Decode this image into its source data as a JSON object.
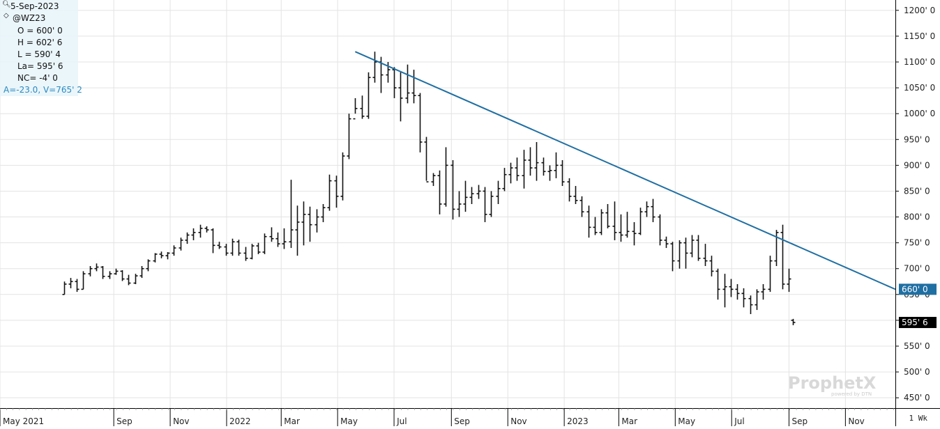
{
  "header": {
    "date": "5-Sep-2023",
    "symbol": "@WZ23",
    "open": "O = 600' 0",
    "high": "H = 602' 6",
    "low": "L = 590' 4",
    "last": "La= 595' 6",
    "net_change": "NC= -4' 0",
    "stats": "A=-23.0, V=765' 2"
  },
  "period": "1 Wk",
  "watermark": {
    "brand": "ProphetX",
    "sub": "powered by DTN"
  },
  "colors": {
    "bar": "#111111",
    "trendline": "#1f6fa3",
    "grid": "#e3e3e3",
    "last_tag_bg": "#000000",
    "trend_tag_bg": "#1f6fa3"
  },
  "chart_data": {
    "type": "ohlc",
    "frequency": "weekly",
    "ylim": [
      430,
      1220
    ],
    "y_ticks": [
      "1200' 0",
      "1150' 0",
      "1100' 0",
      "1050' 0",
      "1000' 0",
      "950' 0",
      "900' 0",
      "850' 0",
      "800' 0",
      "750' 0",
      "700' 0",
      "650' 0",
      "600' 0",
      "550' 0",
      "500' 0",
      "450' 0"
    ],
    "y_tick_values": [
      1200,
      1150,
      1100,
      1050,
      1000,
      950,
      900,
      850,
      800,
      750,
      700,
      650,
      600,
      550,
      500,
      450
    ],
    "x_ticks": [
      "May 2021",
      "Sep",
      "Nov",
      "2022",
      "Mar",
      "May",
      "Jul",
      "Sep",
      "Nov",
      "2023",
      "Mar",
      "May",
      "Jul",
      "Sep",
      "Nov"
    ],
    "x_tick_dates": [
      "2021-05-01",
      "2021-09-01",
      "2021-11-01",
      "2022-01-01",
      "2022-03-01",
      "2022-05-01",
      "2022-07-01",
      "2022-09-01",
      "2022-11-01",
      "2023-01-01",
      "2023-03-01",
      "2023-05-01",
      "2023-07-01",
      "2023-09-01",
      "2023-11-01"
    ],
    "x_range": [
      "2021-05-01",
      "2023-12-25"
    ],
    "bars": [
      [
        "2021-07-09",
        650,
        675,
        650,
        670
      ],
      [
        "2021-07-16",
        670,
        682,
        662,
        675
      ],
      [
        "2021-07-23",
        675,
        680,
        655,
        660
      ],
      [
        "2021-07-30",
        660,
        695,
        660,
        690
      ],
      [
        "2021-08-06",
        690,
        705,
        685,
        700
      ],
      [
        "2021-08-13",
        700,
        710,
        695,
        703
      ],
      [
        "2021-08-20",
        703,
        705,
        680,
        685
      ],
      [
        "2021-08-27",
        685,
        695,
        680,
        690
      ],
      [
        "2021-09-03",
        690,
        700,
        688,
        695
      ],
      [
        "2021-09-10",
        695,
        697,
        676,
        680
      ],
      [
        "2021-09-17",
        680,
        688,
        668,
        672
      ],
      [
        "2021-09-24",
        672,
        690,
        670,
        686
      ],
      [
        "2021-10-01",
        686,
        705,
        682,
        700
      ],
      [
        "2021-10-08",
        700,
        718,
        695,
        715
      ],
      [
        "2021-10-15",
        715,
        730,
        712,
        728
      ],
      [
        "2021-10-22",
        728,
        733,
        720,
        725
      ],
      [
        "2021-10-29",
        725,
        732,
        718,
        730
      ],
      [
        "2021-11-05",
        730,
        745,
        725,
        740
      ],
      [
        "2021-11-12",
        740,
        760,
        735,
        755
      ],
      [
        "2021-11-19",
        755,
        770,
        748,
        765
      ],
      [
        "2021-11-26",
        765,
        778,
        755,
        770
      ],
      [
        "2021-12-03",
        770,
        785,
        760,
        778
      ],
      [
        "2021-12-10",
        778,
        782,
        770,
        775
      ],
      [
        "2021-12-17",
        775,
        778,
        730,
        745
      ],
      [
        "2021-12-24",
        745,
        752,
        738,
        742
      ],
      [
        "2021-12-31",
        742,
        748,
        725,
        730
      ],
      [
        "2022-01-07",
        730,
        758,
        725,
        752
      ],
      [
        "2022-01-14",
        752,
        756,
        725,
        730
      ],
      [
        "2022-01-21",
        730,
        742,
        715,
        720
      ],
      [
        "2022-01-28",
        720,
        748,
        718,
        744
      ],
      [
        "2022-02-04",
        744,
        750,
        728,
        732
      ],
      [
        "2022-02-11",
        732,
        768,
        728,
        762
      ],
      [
        "2022-02-18",
        762,
        780,
        752,
        758
      ],
      [
        "2022-02-25",
        758,
        770,
        742,
        748
      ],
      [
        "2022-03-04",
        748,
        778,
        738,
        752
      ],
      [
        "2022-03-11",
        752,
        872,
        740,
        775
      ],
      [
        "2022-03-18",
        775,
        822,
        725,
        790
      ],
      [
        "2022-03-25",
        790,
        830,
        745,
        805
      ],
      [
        "2022-04-01",
        805,
        820,
        752,
        785
      ],
      [
        "2022-04-08",
        785,
        815,
        770,
        800
      ],
      [
        "2022-04-15",
        800,
        825,
        790,
        818
      ],
      [
        "2022-04-22",
        818,
        882,
        812,
        870
      ],
      [
        "2022-04-29",
        870,
        880,
        818,
        840
      ],
      [
        "2022-05-06",
        840,
        925,
        832,
        918
      ],
      [
        "2022-05-13",
        918,
        1000,
        912,
        990
      ],
      [
        "2022-05-20",
        990,
        1030,
        1000,
        1010
      ],
      [
        "2022-05-27",
        1010,
        1035,
        990,
        995
      ],
      [
        "2022-06-03",
        995,
        1080,
        990,
        1070
      ],
      [
        "2022-06-10",
        1070,
        1120,
        1060,
        1100
      ],
      [
        "2022-06-17",
        1100,
        1110,
        1040,
        1075
      ],
      [
        "2022-06-24",
        1075,
        1100,
        1060,
        1085
      ],
      [
        "2022-07-01",
        1085,
        1090,
        1030,
        1050
      ],
      [
        "2022-07-08",
        1050,
        1080,
        985,
        1030
      ],
      [
        "2022-07-15",
        1030,
        1095,
        1020,
        1040
      ],
      [
        "2022-07-22",
        1040,
        1085,
        1020,
        1035
      ],
      [
        "2022-07-29",
        1035,
        1040,
        925,
        945
      ],
      [
        "2022-08-05",
        945,
        955,
        870,
        868
      ],
      [
        "2022-08-12",
        868,
        885,
        860,
        880
      ],
      [
        "2022-08-19",
        880,
        890,
        805,
        825
      ],
      [
        "2022-08-26",
        825,
        935,
        820,
        900
      ],
      [
        "2022-09-02",
        900,
        910,
        795,
        815
      ],
      [
        "2022-09-09",
        815,
        850,
        800,
        825
      ],
      [
        "2022-09-16",
        825,
        870,
        810,
        838
      ],
      [
        "2022-09-23",
        838,
        858,
        825,
        845
      ],
      [
        "2022-09-30",
        845,
        862,
        835,
        850
      ],
      [
        "2022-10-07",
        850,
        858,
        790,
        805
      ],
      [
        "2022-10-14",
        805,
        850,
        800,
        840
      ],
      [
        "2022-10-21",
        840,
        870,
        825,
        855
      ],
      [
        "2022-10-28",
        855,
        895,
        850,
        882
      ],
      [
        "2022-11-04",
        882,
        905,
        865,
        895
      ],
      [
        "2022-11-11",
        895,
        915,
        870,
        880
      ],
      [
        "2022-11-18",
        880,
        930,
        855,
        910
      ],
      [
        "2022-11-25",
        910,
        935,
        880,
        895
      ],
      [
        "2022-12-02",
        895,
        945,
        870,
        905
      ],
      [
        "2022-12-09",
        905,
        915,
        880,
        888
      ],
      [
        "2022-12-16",
        888,
        900,
        870,
        890
      ],
      [
        "2022-12-23",
        890,
        925,
        875,
        900
      ],
      [
        "2022-12-30",
        900,
        910,
        860,
        868
      ],
      [
        "2023-01-06",
        868,
        875,
        830,
        840
      ],
      [
        "2023-01-13",
        840,
        860,
        825,
        832
      ],
      [
        "2023-01-20",
        832,
        840,
        800,
        810
      ],
      [
        "2023-01-27",
        810,
        822,
        760,
        780
      ],
      [
        "2023-02-03",
        780,
        800,
        765,
        770
      ],
      [
        "2023-02-10",
        770,
        815,
        765,
        808
      ],
      [
        "2023-02-17",
        808,
        825,
        778,
        782
      ],
      [
        "2023-02-24",
        782,
        830,
        755,
        770
      ],
      [
        "2023-03-03",
        770,
        805,
        752,
        765
      ],
      [
        "2023-03-10",
        765,
        810,
        760,
        772
      ],
      [
        "2023-03-17",
        772,
        790,
        745,
        768
      ],
      [
        "2023-03-24",
        768,
        818,
        765,
        810
      ],
      [
        "2023-03-31",
        810,
        830,
        800,
        820
      ],
      [
        "2023-04-07",
        820,
        835,
        790,
        800
      ],
      [
        "2023-04-14",
        800,
        805,
        745,
        755
      ],
      [
        "2023-04-21",
        755,
        762,
        740,
        748
      ],
      [
        "2023-04-28",
        748,
        752,
        695,
        715
      ],
      [
        "2023-05-05",
        715,
        755,
        700,
        750
      ],
      [
        "2023-05-12",
        750,
        760,
        700,
        730
      ],
      [
        "2023-05-19",
        730,
        765,
        722,
        755
      ],
      [
        "2023-05-26",
        755,
        765,
        715,
        720
      ],
      [
        "2023-06-02",
        720,
        748,
        705,
        715
      ],
      [
        "2023-06-09",
        715,
        725,
        685,
        695
      ],
      [
        "2023-06-16",
        695,
        700,
        640,
        660
      ],
      [
        "2023-06-23",
        660,
        690,
        625,
        665
      ],
      [
        "2023-06-30",
        665,
        680,
        645,
        660
      ],
      [
        "2023-07-07",
        660,
        670,
        640,
        652
      ],
      [
        "2023-07-14",
        652,
        662,
        625,
        642
      ],
      [
        "2023-07-21",
        642,
        648,
        612,
        630
      ],
      [
        "2023-07-28",
        630,
        660,
        620,
        655
      ],
      [
        "2023-08-04",
        655,
        670,
        640,
        660
      ],
      [
        "2023-08-11",
        660,
        725,
        655,
        715
      ],
      [
        "2023-08-18",
        715,
        775,
        705,
        770
      ],
      [
        "2023-08-25",
        770,
        785,
        660,
        670
      ],
      [
        "2023-09-01",
        670,
        700,
        655,
        680
      ]
    ],
    "bars_note_last": "last bar uses header O/H/L/La values",
    "last_bar": [
      "2023-09-05",
      600,
      602.75,
      590.5,
      595.75
    ],
    "trendline": {
      "start": [
        "2022-05-20",
        1120
      ],
      "end": [
        "2023-12-25",
        660
      ]
    },
    "price_tags": [
      {
        "label": "660' 0",
        "value": 660,
        "style": "trendline"
      },
      {
        "label": "595' 6",
        "value": 595.75,
        "style": "last"
      }
    ]
  }
}
